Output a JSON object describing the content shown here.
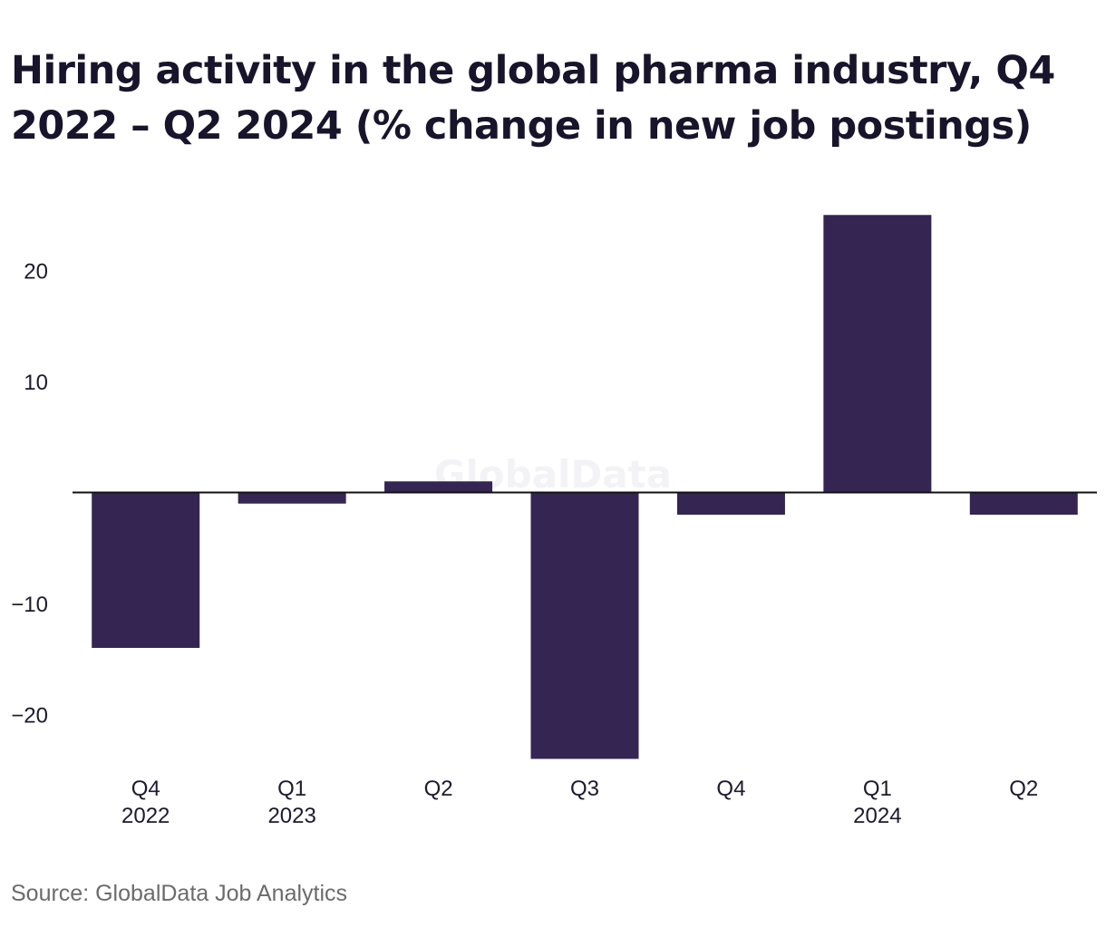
{
  "chart_data": {
    "type": "bar",
    "title": "Hiring activity in the global pharma industry, Q4 2022 – Q2 2024 (% change in new job postings)",
    "categories": [
      {
        "quarter": "Q4",
        "year": "2022"
      },
      {
        "quarter": "Q1",
        "year": "2023"
      },
      {
        "quarter": "Q2",
        "year": ""
      },
      {
        "quarter": "Q3",
        "year": ""
      },
      {
        "quarter": "Q4",
        "year": ""
      },
      {
        "quarter": "Q1",
        "year": "2024"
      },
      {
        "quarter": "Q2",
        "year": ""
      }
    ],
    "values": [
      -14,
      -1,
      1,
      -24,
      -2,
      25,
      -2
    ],
    "y_ticks": [
      20,
      10,
      -10,
      -20
    ],
    "y_tick_labels": [
      "20",
      "10",
      "−10",
      "−20"
    ],
    "ylim": [
      -24,
      25
    ],
    "grid": false,
    "legend": "none",
    "bar_color": "#342552",
    "axis_color": "#111111"
  },
  "watermark": "GlobalData",
  "source": "Source: GlobalData Job Analytics"
}
